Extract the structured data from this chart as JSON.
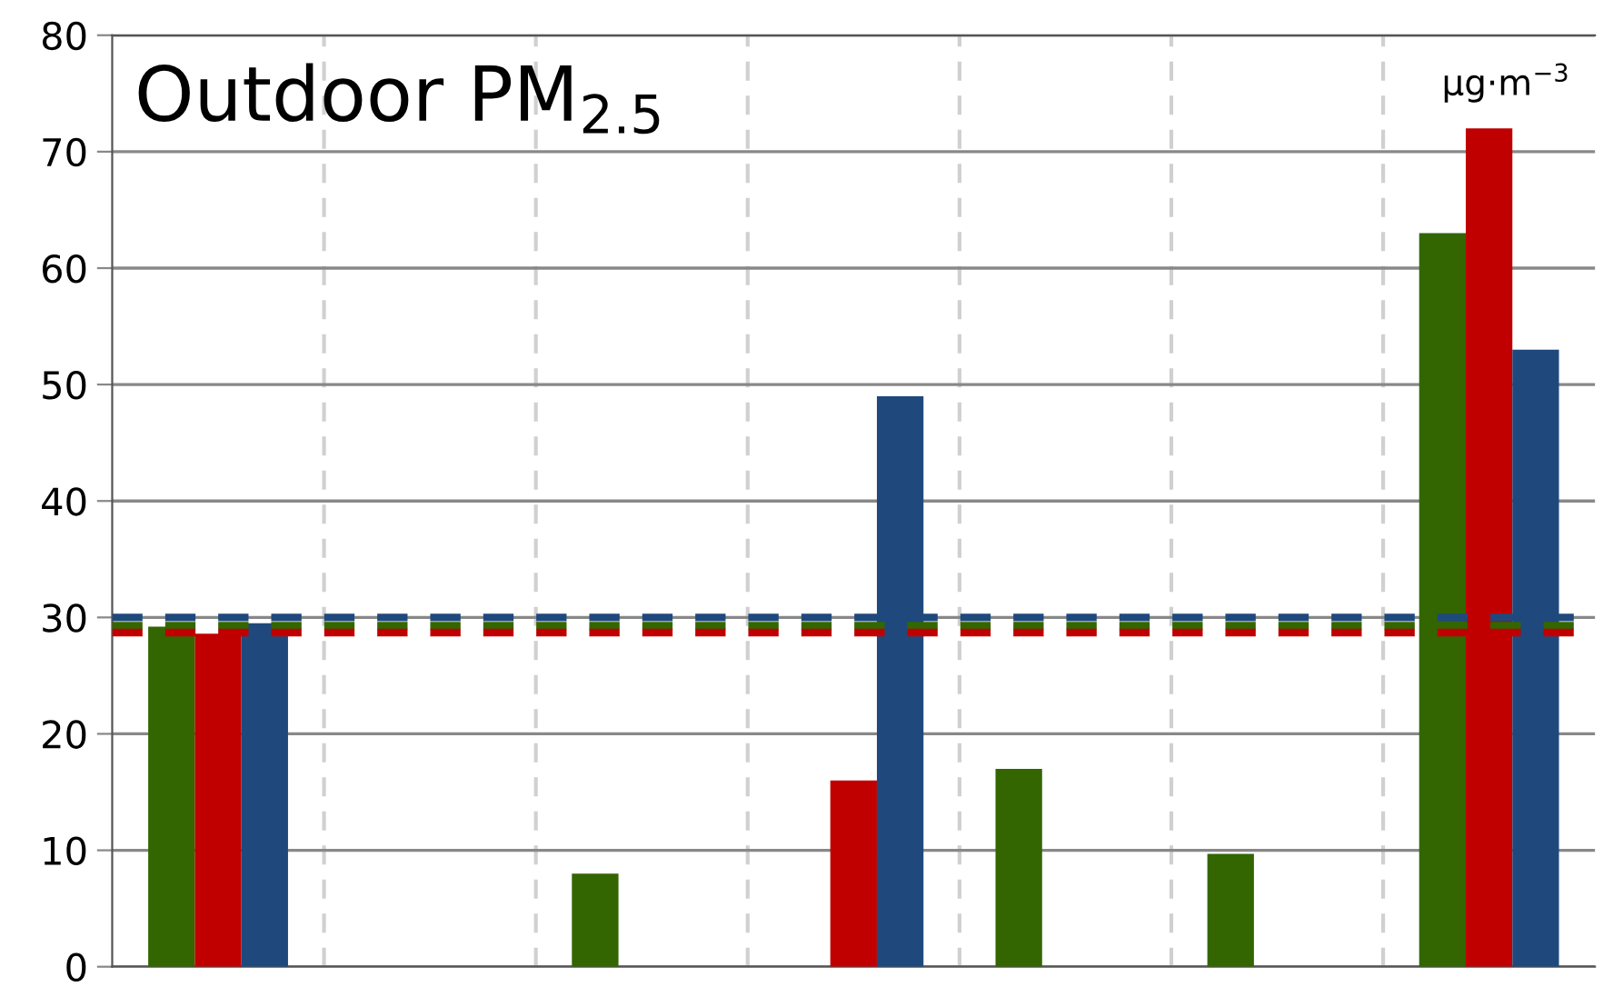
{
  "chart_data": {
    "type": "bar",
    "title": "Outdoor PM$_{2.5}$",
    "categories": [
      null,
      null,
      null,
      null,
      null,
      null,
      null
    ],
    "series": [
      {
        "color": "#336600",
        "values": [
          29.2,
          null,
          8,
          null,
          17,
          9.7,
          63
        ]
      },
      {
        "color": "#c00000",
        "values": [
          28.6,
          null,
          null,
          16,
          null,
          null,
          72
        ]
      },
      {
        "color": "#1f497d",
        "values": [
          29.5,
          null,
          null,
          49,
          null,
          null,
          53
        ]
      }
    ],
    "ref_lines": [
      {
        "axis": "y",
        "value": 30,
        "color": "#1f497d",
        "line_style": "dashed"
      },
      {
        "axis": "y",
        "value": 29.3,
        "color": "#336600",
        "line_style": "dashed"
      },
      {
        "axis": "y",
        "value": 28.7,
        "color": "#c00000",
        "line_style": "dashed"
      }
    ],
    "annotations": [
      "μg·m$^{−3}$"
    ],
    "ylim": [
      0,
      80
    ],
    "yticks": [
      0,
      10,
      20,
      30,
      40,
      50,
      60,
      70,
      80
    ],
    "grid": true,
    "legend": false
  }
}
